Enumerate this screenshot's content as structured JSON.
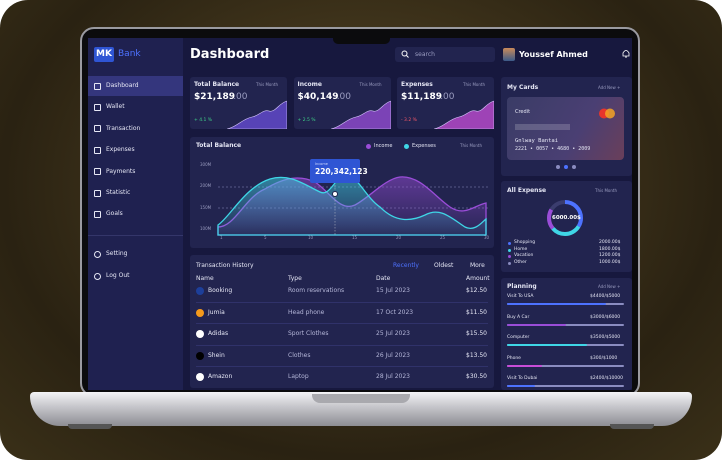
{
  "sidebar": {
    "logo": {
      "mark": "MK",
      "text": "Bank"
    },
    "menu": [
      "Dashboard",
      "Wallet",
      "Transaction",
      "Expenses",
      "Payments",
      "Statistic",
      "Goals"
    ],
    "bottom_menu": [
      "Setting",
      "Log Out"
    ]
  },
  "header": {
    "title": "Dashboard",
    "search_placeholder": "search",
    "user": "Youssef Ahmed"
  },
  "summary_cards": [
    {
      "label": "Total Balance",
      "period": "This Month",
      "value": "$21,189",
      "cents": ".00",
      "change": "+ 4.1 %"
    },
    {
      "label": "Income",
      "period": "This Month",
      "value": "$40,149",
      "cents": ".00",
      "change": "+ 2.5 %"
    },
    {
      "label": "Expenses",
      "period": "This Month",
      "value": "$11,189",
      "cents": ".00",
      "change": "- 3.2 %"
    }
  ],
  "balance_chart": {
    "title": "Total Balance",
    "legend": [
      "Income",
      "Expenses"
    ],
    "period": "This Month",
    "y_labels": [
      "300M",
      "200M",
      "150M",
      "100M"
    ],
    "x_labels": [
      "1",
      "5",
      "10",
      "15",
      "20",
      "25",
      "30"
    ],
    "tooltip": {
      "label": "Income",
      "value": "220,342,123"
    }
  },
  "transactions": {
    "title": "Transaction History",
    "tabs": [
      "Recently",
      "Oldest",
      "More"
    ],
    "columns": [
      "Name",
      "Type",
      "Date",
      "Amount"
    ],
    "rows": [
      [
        "Booking",
        "Room reservations",
        "15 Jul 2023",
        "$12.50"
      ],
      [
        "Jumia",
        "Head phone",
        "17 Oct 2023",
        "$11.50"
      ],
      [
        "Adidas",
        "Sport Clothes",
        "25 Jul 2023",
        "$15.50"
      ],
      [
        "Shein",
        "Clothes",
        "26 Jul 2023",
        "$13.50"
      ],
      [
        "Amazon",
        "Laptop",
        "28 Jul 2023",
        "$30.50"
      ]
    ]
  },
  "my_cards": {
    "title": "My Cards",
    "action": "Add New +",
    "card": {
      "type": "Credit",
      "holder": "Gnlway Bantai",
      "number": "2221 • 0057 • 4680 • 2009"
    }
  },
  "all_expense": {
    "title": "All Expense",
    "period": "This Month",
    "total": "6000.00$",
    "items": [
      {
        "name": "Shopping",
        "amount": "2000.00$"
      },
      {
        "name": "Home",
        "amount": "1800.00$"
      },
      {
        "name": "Vacation",
        "amount": "1200.00$"
      },
      {
        "name": "Other",
        "amount": "1000.00$"
      }
    ]
  },
  "planning": {
    "title": "Planning",
    "action": "Add New +",
    "items": [
      {
        "name": "Visit To USA",
        "amount": "$4400/$5000"
      },
      {
        "name": "Buy A Car",
        "amount": "$3000/$6000"
      },
      {
        "name": "Computer",
        "amount": "$3500/$5000"
      },
      {
        "name": "Phone",
        "amount": "$300/$1000"
      },
      {
        "name": "Visit To Dubai",
        "amount": "$2400/$10000"
      }
    ]
  }
}
